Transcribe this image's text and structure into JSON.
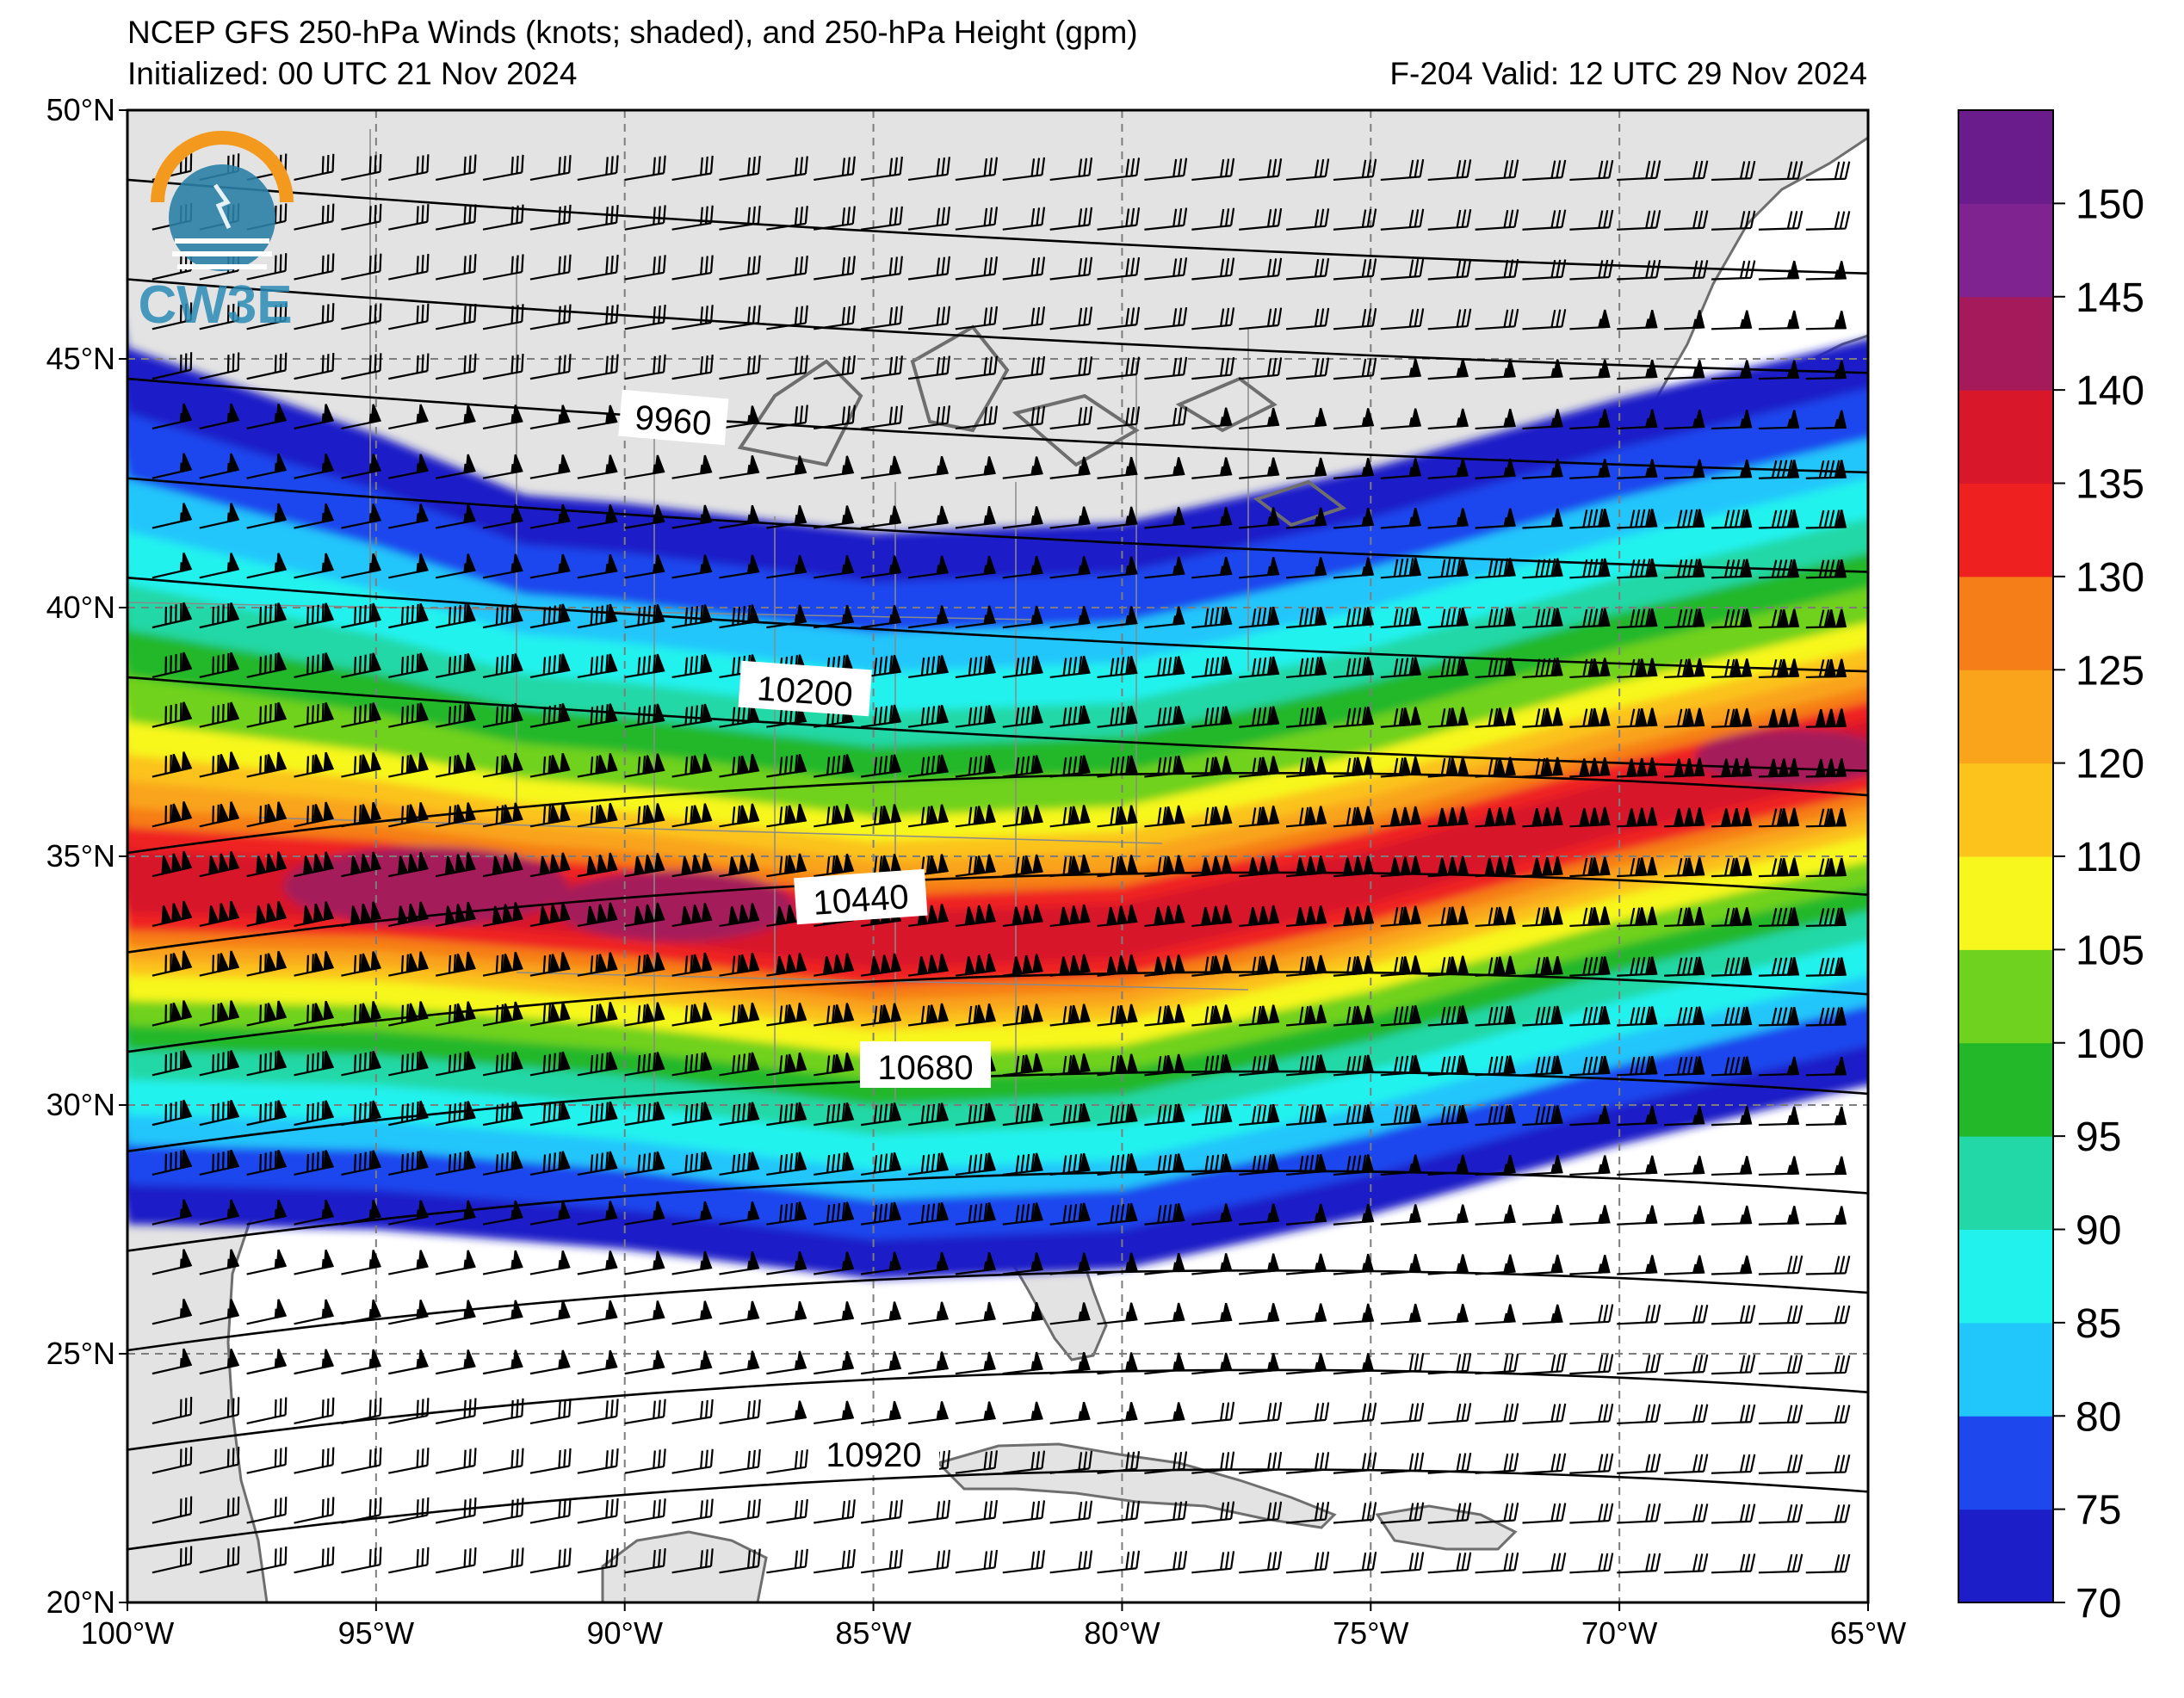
{
  "titles": {
    "line1": "NCEP GFS 250-hPa Winds (knots; shaded), and 250-hPa Height (gpm)",
    "line2": "Initialized: 00 UTC 21 Nov 2024",
    "valid": "F-204  Valid: 12 UTC 29 Nov 2024"
  },
  "logo": {
    "text": "CW3E"
  },
  "map": {
    "projection": "lat-lon",
    "lon_range": [
      -100,
      -65
    ],
    "lat_range": [
      20,
      50
    ],
    "grid": true,
    "lon_ticks": [
      "100°W",
      "95°W",
      "90°W",
      "85°W",
      "80°W",
      "75°W",
      "70°W",
      "65°W"
    ],
    "lat_ticks": [
      "20°N",
      "25°N",
      "30°N",
      "35°N",
      "40°N",
      "45°N",
      "50°N"
    ]
  },
  "colorbar": {
    "levels": [
      70,
      75,
      80,
      85,
      90,
      95,
      100,
      105,
      110,
      120,
      125,
      130,
      135,
      140,
      145,
      150,
      155
    ],
    "tick_labels": [
      "70",
      "75",
      "80",
      "85",
      "90",
      "95",
      "100",
      "105",
      "110",
      "120",
      "125",
      "130",
      "135",
      "140",
      "145",
      "150"
    ],
    "colors": [
      "#1c1fc8",
      "#1f47ee",
      "#21c6fb",
      "#22f2ee",
      "#22d8a6",
      "#23b829",
      "#6fd21f",
      "#f7f71e",
      "#fbc31c",
      "#f9a41a",
      "#f67e18",
      "#ef2020",
      "#d8182a",
      "#a51a5a",
      "#7f2390",
      "#6b1c8c"
    ]
  },
  "contour_labels": [
    "9960",
    "10200",
    "10440",
    "10680",
    "10920"
  ],
  "jet_core": [
    {
      "lon": -100,
      "lat": 34.4
    },
    {
      "lon": -95,
      "lat": 34.3
    },
    {
      "lon": -90,
      "lat": 33.9
    },
    {
      "lon": -85,
      "lat": 33.3
    },
    {
      "lon": -80,
      "lat": 33.5
    },
    {
      "lon": -75,
      "lat": 34.6
    },
    {
      "lon": -70,
      "lat": 36.0
    },
    {
      "lon": -65,
      "lat": 37.2
    }
  ]
}
